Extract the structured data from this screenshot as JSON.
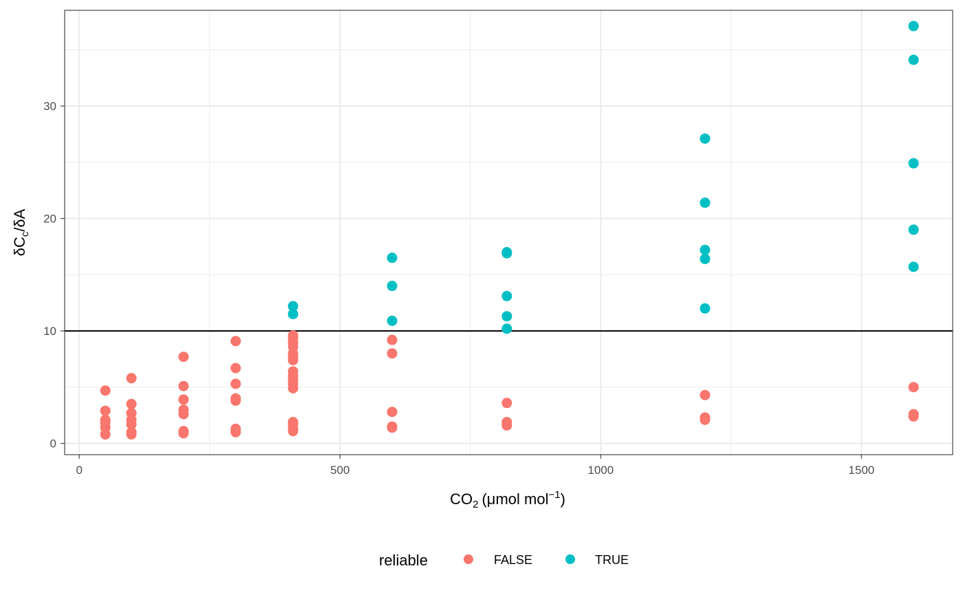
{
  "chart_data": {
    "type": "scatter",
    "xlabel": "CO",
    "xlabel_sub": "2",
    "xlabel_unit": "(μmol mol",
    "xlabel_sup": "−1",
    "xlabel_close": ")",
    "ylabel": "δC",
    "ylabel_sub": "c",
    "ylabel_tail": "/δA",
    "xlim": [
      -28,
      1675
    ],
    "ylim": [
      -1.0,
      38.5
    ],
    "x_ticks": [
      0,
      500,
      1000,
      1500
    ],
    "x_tick_labels": [
      "0",
      "500",
      "1000",
      "1500"
    ],
    "y_ticks": [
      0,
      10,
      20,
      30
    ],
    "y_tick_labels": [
      "0",
      "10",
      "20",
      "30"
    ],
    "grid": true,
    "reference_line": {
      "y": 10,
      "color": "#000000"
    },
    "legend": {
      "title": "reliable",
      "position": "bottom",
      "entries": [
        {
          "label": "FALSE",
          "color": "#F8766D"
        },
        {
          "label": "TRUE",
          "color": "#00BFC4"
        }
      ]
    },
    "series": [
      {
        "name": "FALSE",
        "color": "#F8766D",
        "points": [
          [
            50,
            4.7
          ],
          [
            50,
            2.9
          ],
          [
            50,
            2.1
          ],
          [
            50,
            1.8
          ],
          [
            50,
            1.4
          ],
          [
            50,
            0.8
          ],
          [
            100,
            5.8
          ],
          [
            100,
            3.5
          ],
          [
            100,
            2.7
          ],
          [
            100,
            2.1
          ],
          [
            100,
            1.7
          ],
          [
            100,
            1.0
          ],
          [
            100,
            0.8
          ],
          [
            200,
            7.7
          ],
          [
            200,
            5.1
          ],
          [
            200,
            3.9
          ],
          [
            200,
            3.0
          ],
          [
            200,
            2.6
          ],
          [
            200,
            1.1
          ],
          [
            200,
            0.9
          ],
          [
            300,
            9.1
          ],
          [
            300,
            6.7
          ],
          [
            300,
            5.3
          ],
          [
            300,
            4.0
          ],
          [
            300,
            3.8
          ],
          [
            300,
            1.3
          ],
          [
            300,
            1.0
          ],
          [
            410,
            9.6
          ],
          [
            410,
            9.4
          ],
          [
            410,
            9.0
          ],
          [
            410,
            8.6
          ],
          [
            410,
            8.0
          ],
          [
            410,
            7.7
          ],
          [
            410,
            7.4
          ],
          [
            410,
            6.4
          ],
          [
            410,
            6.0
          ],
          [
            410,
            5.6
          ],
          [
            410,
            5.3
          ],
          [
            410,
            4.9
          ],
          [
            410,
            1.9
          ],
          [
            410,
            1.7
          ],
          [
            410,
            1.3
          ],
          [
            410,
            1.1
          ],
          [
            600,
            9.2
          ],
          [
            600,
            8.0
          ],
          [
            600,
            2.8
          ],
          [
            600,
            1.5
          ],
          [
            600,
            1.4
          ],
          [
            820,
            3.6
          ],
          [
            820,
            1.9
          ],
          [
            820,
            1.6
          ],
          [
            1200,
            4.3
          ],
          [
            1200,
            2.3
          ],
          [
            1200,
            2.1
          ],
          [
            1600,
            5.0
          ],
          [
            1600,
            2.6
          ],
          [
            1600,
            2.4
          ]
        ]
      },
      {
        "name": "TRUE",
        "color": "#00BFC4",
        "points": [
          [
            410,
            12.2
          ],
          [
            410,
            11.5
          ],
          [
            600,
            16.5
          ],
          [
            600,
            14.0
          ],
          [
            600,
            10.9
          ],
          [
            820,
            17.0
          ],
          [
            820,
            16.9
          ],
          [
            820,
            13.1
          ],
          [
            820,
            11.3
          ],
          [
            820,
            10.2
          ],
          [
            1200,
            27.1
          ],
          [
            1200,
            21.4
          ],
          [
            1200,
            17.2
          ],
          [
            1200,
            16.4
          ],
          [
            1200,
            12.0
          ],
          [
            1600,
            37.1
          ],
          [
            1600,
            34.1
          ],
          [
            1600,
            24.9
          ],
          [
            1600,
            19.0
          ],
          [
            1600,
            15.7
          ]
        ]
      }
    ]
  }
}
